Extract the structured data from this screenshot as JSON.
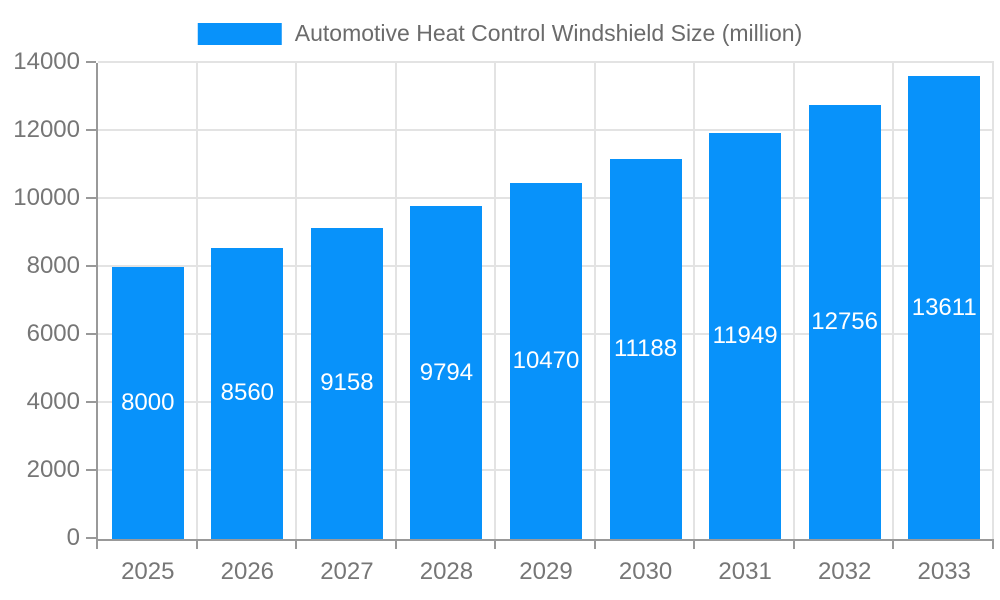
{
  "chart_data": {
    "type": "bar",
    "title": "Automotive Heat Control Windshield Size (million)",
    "legend": [
      "Automotive Heat Control Windshield Size (million)"
    ],
    "legend_position": "top-center",
    "categories": [
      "2025",
      "2026",
      "2027",
      "2028",
      "2029",
      "2030",
      "2031",
      "2032",
      "2033"
    ],
    "values": [
      8000,
      8560,
      9158,
      9794,
      10470,
      11188,
      11949,
      12756,
      13611
    ],
    "xlabel": "",
    "ylabel": "",
    "ylim": [
      0,
      14000
    ],
    "yticks": [
      0,
      2000,
      4000,
      6000,
      8000,
      10000,
      12000,
      14000
    ],
    "grid": true,
    "bar_label_position": "inside-middle"
  },
  "colors": {
    "bar": "#0892fa",
    "bar_label": "#ffffff",
    "grid_line": "#e3e3e3",
    "axis_line": "#999999",
    "tick_text": "#767676",
    "legend_text": "#6b6b6b",
    "background": "#ffffff"
  }
}
